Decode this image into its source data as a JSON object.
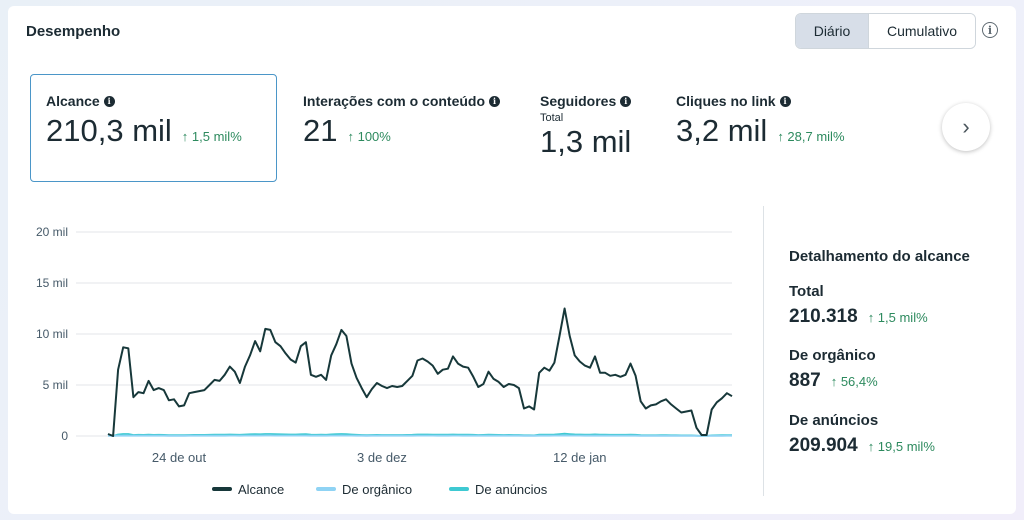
{
  "header": {
    "title": "Desempenho",
    "toggle_daily": "Diário",
    "toggle_cumulative": "Cumulativo",
    "info_glyph": "i"
  },
  "metrics": [
    {
      "label": "Alcance",
      "value": "210,3 mil",
      "change": "↑ 1,5 mil%",
      "sub": "",
      "selected": true
    },
    {
      "label": "Interações com o conteúdo",
      "value": "21",
      "change": "↑ 100%",
      "sub": ""
    },
    {
      "label": "Seguidores",
      "value": "1,3 mil",
      "change": "",
      "sub": "Total"
    },
    {
      "label": "Cliques no link",
      "value": "3,2 mil",
      "change": "↑ 28,7 mil%",
      "sub": ""
    }
  ],
  "next_button": "›",
  "breakdown": {
    "title": "Detalhamento do alcance",
    "items": [
      {
        "label": "Total",
        "value": "210.318",
        "change": "↑ 1,5 mil%"
      },
      {
        "label": "De orgânico",
        "value": "887",
        "change": "↑ 56,4%"
      },
      {
        "label": "De anúncios",
        "value": "209.904",
        "change": "↑ 19,5 mil%"
      }
    ]
  },
  "colors": {
    "alcance": "#17383a",
    "organico": "#8fd3f4",
    "anuncios": "#3ec9d2",
    "positive": "#2d8a5e",
    "selected_border": "#4b96c8"
  },
  "chart_data": {
    "type": "line",
    "y_ticks": [
      "20 mil",
      "15 mil",
      "10 mil",
      "5 mil",
      "0"
    ],
    "ylim": [
      0,
      20000
    ],
    "x_tick_labels": [
      {
        "index": 14,
        "label": "24 de out"
      },
      {
        "index": 54,
        "label": "3 de dez"
      },
      {
        "index": 93,
        "label": "12 de jan"
      }
    ],
    "grid": true,
    "legend_position": "bottom",
    "series": [
      {
        "name": "Alcance",
        "color": "#17383a",
        "values": [
          200,
          0,
          6500,
          8700,
          8600,
          3800,
          4300,
          4200,
          5400,
          4500,
          4700,
          4500,
          3500,
          3600,
          2900,
          3000,
          4200,
          4300,
          4400,
          4500,
          5000,
          5500,
          5400,
          6000,
          6800,
          6300,
          5200,
          6800,
          7900,
          9300,
          8300,
          10500,
          10400,
          9200,
          8800,
          8100,
          7500,
          7200,
          8800,
          9200,
          6000,
          5800,
          6000,
          5500,
          7900,
          9000,
          10400,
          9800,
          7100,
          5700,
          4700,
          3800,
          4600,
          5200,
          4900,
          4700,
          4900,
          4800,
          4900,
          5400,
          5900,
          7400,
          7600,
          7300,
          6900,
          6100,
          6500,
          6600,
          7800,
          7100,
          6800,
          6700,
          5800,
          4800,
          5100,
          6300,
          5600,
          5300,
          4800,
          5100,
          5000,
          4700,
          2700,
          2900,
          2600,
          6200,
          6700,
          6400,
          7200,
          9800,
          12500,
          9800,
          7900,
          7300,
          6900,
          6700,
          7800,
          6200,
          6200,
          5900,
          6000,
          5800,
          6000,
          7100,
          5900,
          3400,
          2700,
          3000,
          3100,
          3400,
          3600,
          3100,
          2700,
          2300,
          2400,
          2500,
          800,
          100,
          100,
          2600,
          3300,
          3700,
          4200,
          3900
        ]
      },
      {
        "name": "De orgânico",
        "color": "#8fd3f4",
        "values": [
          20,
          20,
          30,
          30,
          30,
          25,
          25,
          25,
          30,
          25,
          25,
          25,
          20,
          20,
          20,
          20,
          25,
          25,
          25,
          25,
          30,
          30,
          30,
          30,
          35,
          35,
          30,
          35,
          40,
          40,
          40,
          45,
          45,
          40,
          40,
          40,
          35,
          35,
          40,
          40,
          30,
          30,
          30,
          30,
          35,
          40,
          45,
          40,
          35,
          30,
          25,
          20,
          25,
          25,
          25,
          25,
          25,
          25,
          25,
          25,
          30,
          35,
          35,
          35,
          35,
          30,
          30,
          30,
          35,
          35,
          30,
          30,
          30,
          25,
          25,
          30,
          30,
          25,
          25,
          25,
          25,
          25,
          20,
          20,
          20,
          30,
          30,
          30,
          35,
          40,
          45,
          40,
          35,
          35,
          30,
          30,
          35,
          30,
          30,
          30,
          30,
          30,
          30,
          35,
          30,
          20,
          20,
          20,
          20,
          20,
          20,
          20,
          20,
          20,
          20,
          20,
          10,
          10,
          10,
          20,
          20,
          20,
          25,
          25
        ]
      },
      {
        "name": "De anúncios",
        "color": "#3ec9d2",
        "values": [
          180,
          0,
          150,
          200,
          200,
          100,
          120,
          110,
          130,
          110,
          120,
          110,
          90,
          90,
          80,
          80,
          100,
          110,
          110,
          110,
          120,
          130,
          130,
          140,
          150,
          140,
          120,
          150,
          170,
          190,
          170,
          200,
          200,
          180,
          170,
          160,
          150,
          150,
          170,
          180,
          130,
          120,
          130,
          120,
          160,
          180,
          200,
          190,
          150,
          120,
          100,
          90,
          100,
          110,
          100,
          100,
          100,
          100,
          100,
          110,
          120,
          150,
          150,
          150,
          140,
          130,
          130,
          130,
          150,
          140,
          140,
          130,
          120,
          100,
          110,
          130,
          120,
          110,
          100,
          110,
          100,
          100,
          70,
          70,
          60,
          130,
          140,
          130,
          150,
          190,
          230,
          190,
          160,
          150,
          140,
          140,
          160,
          130,
          130,
          120,
          120,
          120,
          120,
          140,
          120,
          80,
          70,
          70,
          70,
          80,
          80,
          70,
          70,
          60,
          60,
          60,
          30,
          10,
          10,
          60,
          70,
          80,
          90,
          80
        ]
      }
    ]
  }
}
